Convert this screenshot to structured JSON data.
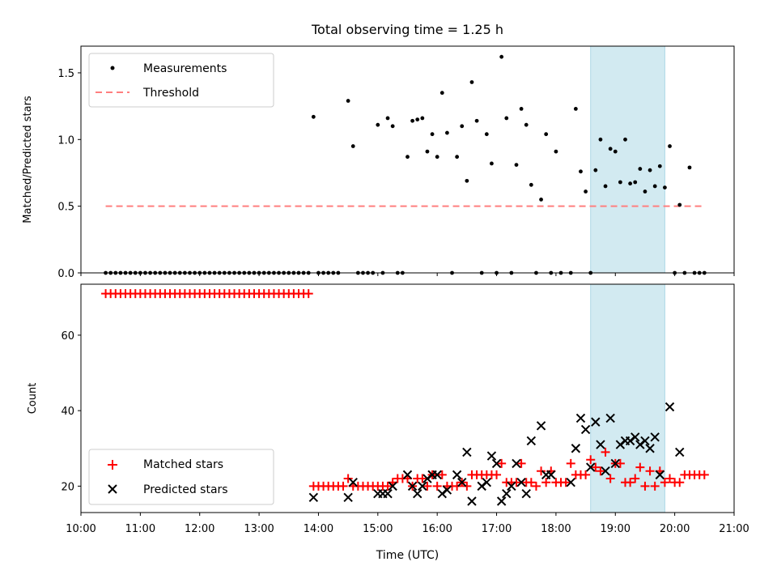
{
  "title": "Total observing time = 1.25 h",
  "chart_data": [
    {
      "type": "scatter",
      "ylabel": "Matched/Predicted stars",
      "ylim": [
        0,
        1.7
      ],
      "yticks": [
        0.0,
        0.5,
        1.0,
        1.5
      ],
      "ytick_labels": [
        "0.0",
        "0.5",
        "1.0",
        "1.5"
      ],
      "xlim": [
        "10:00",
        "21:00"
      ],
      "legend": {
        "placement": "upper-left",
        "measurements_label": "Measurements",
        "threshold_label": "Threshold"
      },
      "highlight_span": [
        "18:35",
        "19:50"
      ],
      "threshold": {
        "value": 0.5,
        "from": "10:25",
        "to": "20:30",
        "color": "#ff7f7f"
      },
      "measurement_color": "#000000",
      "measurements": [
        [
          "10:25",
          0
        ],
        [
          "10:30",
          0
        ],
        [
          "10:35",
          0
        ],
        [
          "10:40",
          0
        ],
        [
          "10:45",
          0
        ],
        [
          "10:50",
          0
        ],
        [
          "10:55",
          0
        ],
        [
          "11:00",
          0
        ],
        [
          "11:05",
          0
        ],
        [
          "11:10",
          0
        ],
        [
          "11:15",
          0
        ],
        [
          "11:20",
          0
        ],
        [
          "11:25",
          0
        ],
        [
          "11:30",
          0
        ],
        [
          "11:35",
          0
        ],
        [
          "11:40",
          0
        ],
        [
          "11:45",
          0
        ],
        [
          "11:50",
          0
        ],
        [
          "11:55",
          0
        ],
        [
          "12:00",
          0
        ],
        [
          "12:05",
          0
        ],
        [
          "12:10",
          0
        ],
        [
          "12:15",
          0
        ],
        [
          "12:20",
          0
        ],
        [
          "12:25",
          0
        ],
        [
          "12:30",
          0
        ],
        [
          "12:35",
          0
        ],
        [
          "12:40",
          0
        ],
        [
          "12:45",
          0
        ],
        [
          "12:50",
          0
        ],
        [
          "12:55",
          0
        ],
        [
          "13:00",
          0
        ],
        [
          "13:05",
          0
        ],
        [
          "13:10",
          0
        ],
        [
          "13:15",
          0
        ],
        [
          "13:20",
          0
        ],
        [
          "13:25",
          0
        ],
        [
          "13:30",
          0
        ],
        [
          "13:35",
          0
        ],
        [
          "13:40",
          0
        ],
        [
          "13:45",
          0
        ],
        [
          "13:50",
          0
        ],
        [
          "13:55",
          1.17
        ],
        [
          "14:00",
          0
        ],
        [
          "14:05",
          0
        ],
        [
          "14:10",
          0
        ],
        [
          "14:15",
          0
        ],
        [
          "14:20",
          0
        ],
        [
          "14:30",
          1.29
        ],
        [
          "14:35",
          0.95
        ],
        [
          "14:40",
          0
        ],
        [
          "14:45",
          0
        ],
        [
          "14:50",
          0
        ],
        [
          "14:55",
          0
        ],
        [
          "15:00",
          1.11
        ],
        [
          "15:05",
          0
        ],
        [
          "15:10",
          1.16
        ],
        [
          "15:15",
          1.1
        ],
        [
          "15:20",
          0
        ],
        [
          "15:25",
          0
        ],
        [
          "15:30",
          0.87
        ],
        [
          "15:35",
          1.14
        ],
        [
          "15:40",
          1.15
        ],
        [
          "15:45",
          1.16
        ],
        [
          "15:50",
          0.91
        ],
        [
          "15:55",
          1.04
        ],
        [
          "16:00",
          0.87
        ],
        [
          "16:05",
          1.35
        ],
        [
          "16:10",
          1.05
        ],
        [
          "16:15",
          0
        ],
        [
          "16:20",
          0.87
        ],
        [
          "16:25",
          1.1
        ],
        [
          "16:30",
          0.69
        ],
        [
          "16:35",
          1.43
        ],
        [
          "16:40",
          1.14
        ],
        [
          "16:45",
          0
        ],
        [
          "16:50",
          1.04
        ],
        [
          "16:55",
          0.82
        ],
        [
          "17:00",
          0
        ],
        [
          "17:05",
          1.62
        ],
        [
          "17:10",
          1.16
        ],
        [
          "17:15",
          0
        ],
        [
          "17:20",
          0.81
        ],
        [
          "17:25",
          1.23
        ],
        [
          "17:30",
          1.11
        ],
        [
          "17:35",
          0.66
        ],
        [
          "17:40",
          0
        ],
        [
          "17:45",
          0.55
        ],
        [
          "17:50",
          1.04
        ],
        [
          "17:55",
          0
        ],
        [
          "18:00",
          0.91
        ],
        [
          "18:05",
          0
        ],
        [
          "18:15",
          0
        ],
        [
          "18:20",
          1.23
        ],
        [
          "18:25",
          0.76
        ],
        [
          "18:30",
          0.61
        ],
        [
          "18:35",
          0
        ],
        [
          "18:40",
          0.77
        ],
        [
          "18:45",
          1.0
        ],
        [
          "18:50",
          0.65
        ],
        [
          "18:55",
          0.93
        ],
        [
          "19:00",
          0.91
        ],
        [
          "19:05",
          0.68
        ],
        [
          "19:10",
          1.0
        ],
        [
          "19:15",
          0.67
        ],
        [
          "19:20",
          0.68
        ],
        [
          "19:25",
          0.78
        ],
        [
          "19:30",
          0.61
        ],
        [
          "19:35",
          0.77
        ],
        [
          "19:40",
          0.65
        ],
        [
          "19:45",
          0.8
        ],
        [
          "19:50",
          0.64
        ],
        [
          "19:55",
          0.95
        ],
        [
          "20:00",
          0
        ],
        [
          "20:05",
          0.51
        ],
        [
          "20:10",
          0
        ],
        [
          "20:15",
          0.79
        ],
        [
          "20:20",
          0
        ],
        [
          "20:25",
          0
        ],
        [
          "20:30",
          0
        ]
      ]
    },
    {
      "type": "scatter",
      "xlabel": "Time (UTC)",
      "ylabel": "Count",
      "ylim": [
        13,
        73.5
      ],
      "yticks": [
        20,
        40,
        60
      ],
      "ytick_labels": [
        "20",
        "40",
        "60"
      ],
      "xlim": [
        "10:00",
        "21:00"
      ],
      "xticks": [
        "10:00",
        "11:00",
        "12:00",
        "13:00",
        "14:00",
        "15:00",
        "16:00",
        "17:00",
        "18:00",
        "19:00",
        "20:00",
        "21:00"
      ],
      "legend": {
        "placement": "lower-left",
        "matched_label": "Matched stars",
        "predicted_label": "Predicted stars"
      },
      "highlight_span": [
        "18:35",
        "19:50"
      ],
      "series_colors": {
        "matched": "#ff0000",
        "predicted": "#000000"
      },
      "matched": [
        [
          "10:25",
          71
        ],
        [
          "10:30",
          71
        ],
        [
          "10:35",
          71
        ],
        [
          "10:40",
          71
        ],
        [
          "10:45",
          71
        ],
        [
          "10:50",
          71
        ],
        [
          "10:55",
          71
        ],
        [
          "11:00",
          71
        ],
        [
          "11:05",
          71
        ],
        [
          "11:10",
          71
        ],
        [
          "11:15",
          71
        ],
        [
          "11:20",
          71
        ],
        [
          "11:25",
          71
        ],
        [
          "11:30",
          71
        ],
        [
          "11:35",
          71
        ],
        [
          "11:40",
          71
        ],
        [
          "11:45",
          71
        ],
        [
          "11:50",
          71
        ],
        [
          "11:55",
          71
        ],
        [
          "12:00",
          71
        ],
        [
          "12:05",
          71
        ],
        [
          "12:10",
          71
        ],
        [
          "12:15",
          71
        ],
        [
          "12:20",
          71
        ],
        [
          "12:25",
          71
        ],
        [
          "12:30",
          71
        ],
        [
          "12:35",
          71
        ],
        [
          "12:40",
          71
        ],
        [
          "12:45",
          71
        ],
        [
          "12:50",
          71
        ],
        [
          "12:55",
          71
        ],
        [
          "13:00",
          71
        ],
        [
          "13:05",
          71
        ],
        [
          "13:10",
          71
        ],
        [
          "13:15",
          71
        ],
        [
          "13:20",
          71
        ],
        [
          "13:25",
          71
        ],
        [
          "13:30",
          71
        ],
        [
          "13:35",
          71
        ],
        [
          "13:40",
          71
        ],
        [
          "13:45",
          71
        ],
        [
          "13:50",
          71
        ],
        [
          "13:55",
          20
        ],
        [
          "14:00",
          20
        ],
        [
          "14:05",
          20
        ],
        [
          "14:10",
          20
        ],
        [
          "14:15",
          20
        ],
        [
          "14:20",
          20
        ],
        [
          "14:25",
          20
        ],
        [
          "14:30",
          22
        ],
        [
          "14:35",
          20
        ],
        [
          "14:40",
          20
        ],
        [
          "14:45",
          20
        ],
        [
          "14:50",
          20
        ],
        [
          "14:55",
          20
        ],
        [
          "15:00",
          20
        ],
        [
          "15:05",
          20
        ],
        [
          "15:10",
          20
        ],
        [
          "15:15",
          21
        ],
        [
          "15:20",
          22
        ],
        [
          "15:25",
          22
        ],
        [
          "15:30",
          22
        ],
        [
          "15:35",
          20
        ],
        [
          "15:40",
          22
        ],
        [
          "15:45",
          22
        ],
        [
          "15:50",
          20
        ],
        [
          "15:55",
          23
        ],
        [
          "16:00",
          20
        ],
        [
          "16:05",
          23
        ],
        [
          "16:10",
          20
        ],
        [
          "16:15",
          20
        ],
        [
          "16:20",
          20
        ],
        [
          "16:25",
          21
        ],
        [
          "16:30",
          20
        ],
        [
          "16:35",
          23
        ],
        [
          "16:40",
          23
        ],
        [
          "16:45",
          23
        ],
        [
          "16:50",
          23
        ],
        [
          "16:55",
          23
        ],
        [
          "17:00",
          23
        ],
        [
          "17:05",
          26
        ],
        [
          "17:10",
          21
        ],
        [
          "17:15",
          21
        ],
        [
          "17:20",
          21
        ],
        [
          "17:25",
          26
        ],
        [
          "17:30",
          21
        ],
        [
          "17:35",
          21
        ],
        [
          "17:40",
          20
        ],
        [
          "17:45",
          24
        ],
        [
          "17:50",
          21
        ],
        [
          "17:55",
          24
        ],
        [
          "18:00",
          21
        ],
        [
          "18:05",
          21
        ],
        [
          "18:10",
          21
        ],
        [
          "18:15",
          26
        ],
        [
          "18:20",
          23
        ],
        [
          "18:25",
          23
        ],
        [
          "18:30",
          23
        ],
        [
          "18:35",
          27
        ],
        [
          "18:40",
          25
        ],
        [
          "18:45",
          24
        ],
        [
          "18:50",
          29
        ],
        [
          "18:55",
          22
        ],
        [
          "19:00",
          26
        ],
        [
          "19:05",
          26
        ],
        [
          "19:10",
          21
        ],
        [
          "19:15",
          21
        ],
        [
          "19:20",
          22
        ],
        [
          "19:25",
          25
        ],
        [
          "19:30",
          20
        ],
        [
          "19:35",
          24
        ],
        [
          "19:40",
          20
        ],
        [
          "19:45",
          24
        ],
        [
          "19:50",
          21
        ],
        [
          "19:55",
          22
        ],
        [
          "20:00",
          21
        ],
        [
          "20:05",
          21
        ],
        [
          "20:10",
          23
        ],
        [
          "20:15",
          23
        ],
        [
          "20:20",
          23
        ],
        [
          "20:25",
          23
        ],
        [
          "20:30",
          23
        ]
      ],
      "predicted": [
        [
          "13:55",
          17
        ],
        [
          "14:30",
          17
        ],
        [
          "14:35",
          21
        ],
        [
          "15:00",
          18
        ],
        [
          "15:05",
          18
        ],
        [
          "15:10",
          18
        ],
        [
          "15:15",
          20
        ],
        [
          "15:30",
          23
        ],
        [
          "15:35",
          20
        ],
        [
          "15:40",
          18
        ],
        [
          "15:45",
          20
        ],
        [
          "15:50",
          22
        ],
        [
          "15:55",
          23
        ],
        [
          "16:00",
          23
        ],
        [
          "16:05",
          18
        ],
        [
          "16:10",
          19
        ],
        [
          "16:20",
          23
        ],
        [
          "16:25",
          21
        ],
        [
          "16:30",
          29
        ],
        [
          "16:35",
          16
        ],
        [
          "16:45",
          20
        ],
        [
          "16:50",
          21
        ],
        [
          "16:55",
          28
        ],
        [
          "17:00",
          26
        ],
        [
          "17:05",
          16
        ],
        [
          "17:10",
          18
        ],
        [
          "17:15",
          20
        ],
        [
          "17:20",
          26
        ],
        [
          "17:25",
          21
        ],
        [
          "17:30",
          18
        ],
        [
          "17:35",
          32
        ],
        [
          "17:45",
          36
        ],
        [
          "17:50",
          23
        ],
        [
          "17:55",
          23
        ],
        [
          "18:15",
          21
        ],
        [
          "18:20",
          30
        ],
        [
          "18:25",
          38
        ],
        [
          "18:30",
          35
        ],
        [
          "18:35",
          25
        ],
        [
          "18:40",
          37
        ],
        [
          "18:45",
          31
        ],
        [
          "18:50",
          24
        ],
        [
          "18:55",
          38
        ],
        [
          "19:00",
          26
        ],
        [
          "19:05",
          31
        ],
        [
          "19:10",
          32
        ],
        [
          "19:15",
          32
        ],
        [
          "19:20",
          33
        ],
        [
          "19:25",
          31
        ],
        [
          "19:30",
          32
        ],
        [
          "19:35",
          30
        ],
        [
          "19:40",
          33
        ],
        [
          "19:45",
          23
        ],
        [
          "19:55",
          41
        ],
        [
          "20:05",
          29
        ]
      ]
    }
  ]
}
